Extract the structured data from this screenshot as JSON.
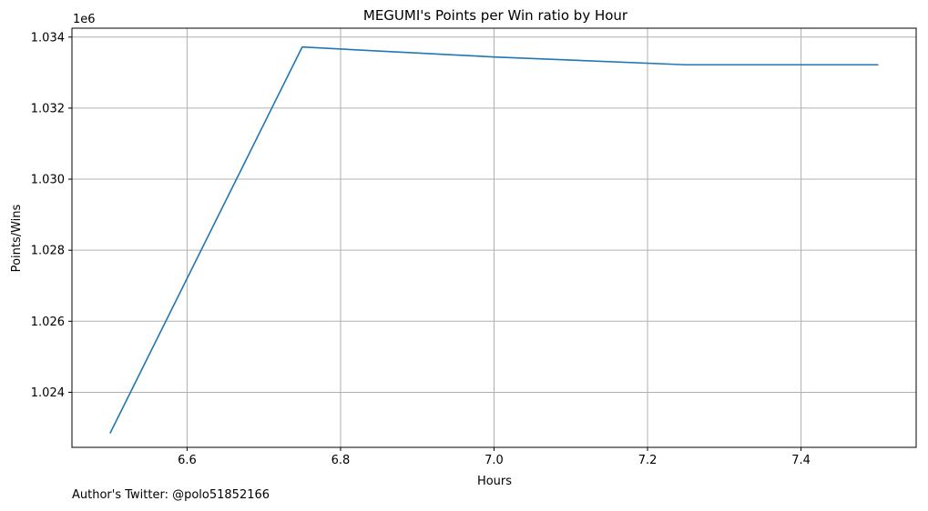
{
  "chart_data": {
    "type": "line",
    "title": "MEGUMI's Points per Win ratio by Hour",
    "xlabel": "Hours",
    "ylabel": "Points/Wins",
    "y_offset_label": "1e6",
    "xlim": [
      6.45,
      7.55
    ],
    "ylim": [
      1.02245,
      1.03425
    ],
    "x_ticks": [
      6.6,
      6.8,
      7.0,
      7.2,
      7.4
    ],
    "x_tick_labels": [
      "6.6",
      "6.8",
      "7.0",
      "7.2",
      "7.4"
    ],
    "y_ticks": [
      1.024,
      1.026,
      1.028,
      1.03,
      1.032,
      1.034
    ],
    "y_tick_labels": [
      "1.024",
      "1.026",
      "1.028",
      "1.030",
      "1.032",
      "1.034"
    ],
    "grid": true,
    "series": [
      {
        "color": "#1f77b4",
        "x": [
          6.5,
          6.75,
          7.0,
          7.25,
          7.5
        ],
        "y": [
          1.02286,
          1.03372,
          1.03344,
          1.03322,
          1.03322
        ]
      }
    ]
  },
  "footer": {
    "credit": "Author's Twitter: @polo51852166"
  }
}
